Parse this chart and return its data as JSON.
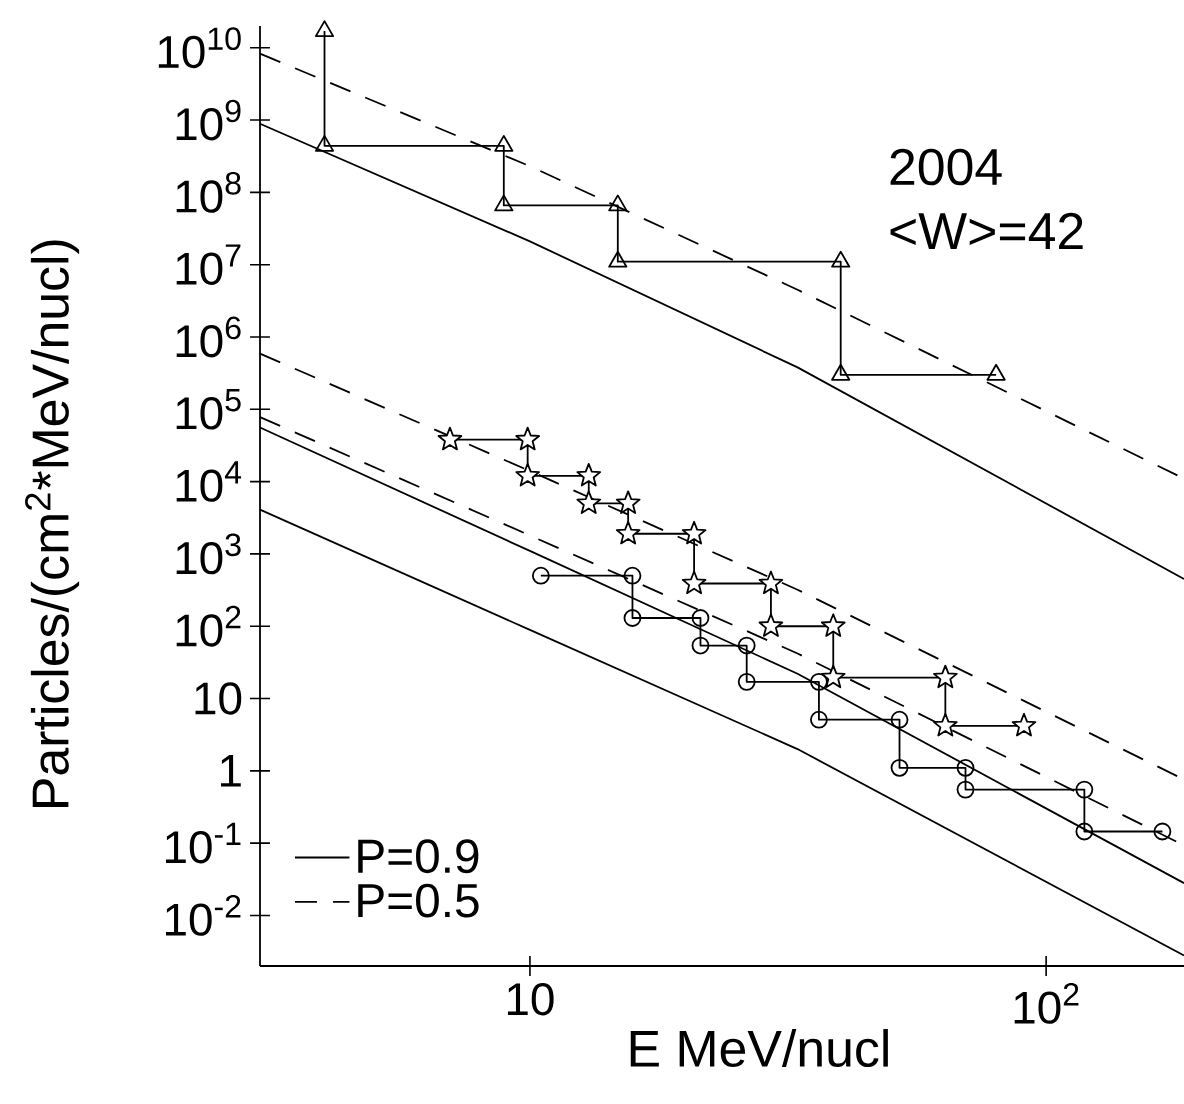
{
  "chart_data": {
    "type": "line",
    "xlabel": "E MeV/nucl",
    "ylabel": "Particles/(cm$^{2}$*MeV/nucl)",
    "annotations": [
      "2004",
      "<W>=42"
    ],
    "log": "xy",
    "legend": "bottom left",
    "grid": false,
    "xlim": [
      3,
      185
    ],
    "ylim": [
      0.002,
      20000000000.0
    ],
    "xticks": [
      10,
      {
        "value": 100,
        "label": "10$^{2}$"
      }
    ],
    "yticks": [
      {
        "value": 0.01,
        "label": "10$^{-2}$"
      },
      {
        "value": 0.1,
        "label": "10$^{-1}$"
      },
      1,
      10,
      {
        "value": 100,
        "label": "10$^{2}$"
      },
      {
        "value": 1000,
        "label": "10$^{3}$"
      },
      {
        "value": 10000,
        "label": "10$^{4}$"
      },
      {
        "value": 100000,
        "label": "10$^{5}$"
      },
      {
        "value": 1000000,
        "label": "10$^{6}$"
      },
      {
        "value": 10000000,
        "label": "10$^{7}$"
      },
      {
        "value": 100000000,
        "label": "10$^{8}$"
      },
      {
        "value": 1000000000,
        "label": "10$^{9}$"
      },
      {
        "value": 10000000000,
        "label": "10$^{10}$"
      }
    ],
    "series": [
      {
        "color": "#000000",
        "marker": "triangle",
        "line_style": "solid",
        "x": [
          4,
          4,
          8.9,
          8.9,
          14.8,
          14.8,
          40,
          40,
          80
        ],
        "values": [
          17000000000.0,
          440000000.0,
          440000000.0,
          66000000.0,
          66000000.0,
          11000000.0,
          11000000.0,
          300000.0,
          300000.0
        ]
      },
      {
        "color": "#000000",
        "marker": "star",
        "line_style": "solid",
        "x": [
          7,
          9.9,
          9.9,
          13,
          13,
          15.5,
          15.5,
          20.8,
          20.8,
          29.3,
          29.3,
          38.7,
          38.7,
          63.8,
          63.8,
          90.6
        ],
        "values": [
          38000,
          38000,
          12000,
          12000,
          5000,
          5000,
          1900,
          1900,
          390,
          390,
          100,
          100,
          19.5,
          19.5,
          4.2,
          4.2
        ]
      },
      {
        "color": "#000000",
        "marker": "circle",
        "line_style": "solid",
        "x": [
          10.5,
          15.8,
          15.8,
          21.4,
          21.4,
          26.3,
          26.3,
          36.3,
          36.3,
          52,
          52,
          69.8,
          69.8,
          118.6,
          118.6,
          168
        ],
        "values": [
          500,
          500,
          130,
          130,
          54,
          54,
          17,
          17,
          5.1,
          5.1,
          1.1,
          1.1,
          0.55,
          0.55,
          0.145,
          0.145
        ]
      },
      {
        "name": "P=0.9",
        "color": "#000000",
        "marker": "none",
        "line_style": "solid",
        "x": [
          3,
          10,
          33,
          185
        ],
        "values": [
          890000000.0,
          21000000.0,
          380000.0,
          450
        ]
      },
      {
        "name": "P=0.5",
        "color": "#000000",
        "marker": "none",
        "line_style": "dashed",
        "x": [
          3,
          10,
          33,
          185
        ],
        "values": [
          8300000000.0,
          230000000.0,
          4500000.0,
          11000
        ]
      },
      {
        "color": "#000000",
        "marker": "none",
        "line_style": "dashed",
        "x": [
          3,
          10,
          33,
          185
        ],
        "values": [
          590000,
          14000,
          320,
          0.76
        ]
      },
      {
        "color": "#000000",
        "marker": "none",
        "line_style": "dashed",
        "x": [
          3,
          10,
          33,
          185
        ],
        "values": [
          78000,
          1800,
          42,
          0.093
        ]
      },
      {
        "color": "#000000",
        "marker": "none",
        "line_style": "solid",
        "x": [
          3,
          10,
          33,
          185
        ],
        "values": [
          56000,
          1100,
          22,
          0.028
        ]
      },
      {
        "color": "#000000",
        "marker": "none",
        "line_style": "solid",
        "x": [
          3,
          10,
          33,
          185
        ],
        "values": [
          4100,
          89,
          2.0,
          0.0028
        ]
      }
    ]
  }
}
